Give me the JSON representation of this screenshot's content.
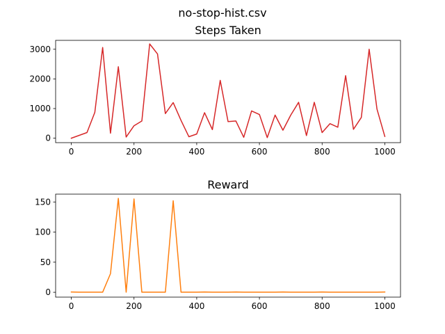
{
  "figure": {
    "suptitle": "no-stop-hist.csv"
  },
  "chart_data": [
    {
      "type": "line",
      "title": "Steps Taken",
      "xlabel": "",
      "ylabel": "",
      "xlim": [
        -50,
        1050
      ],
      "ylim": [
        -150,
        3300
      ],
      "xticks": [
        0,
        200,
        400,
        600,
        800,
        1000
      ],
      "yticks": [
        0,
        1000,
        2000,
        3000
      ],
      "grid": false,
      "series": [
        {
          "color": "#d62728",
          "x": [
            0,
            50,
            75,
            100,
            125,
            150,
            175,
            200,
            225,
            250,
            275,
            300,
            325,
            350,
            375,
            400,
            425,
            450,
            475,
            500,
            525,
            550,
            575,
            600,
            625,
            650,
            675,
            700,
            725,
            750,
            775,
            800,
            825,
            850,
            875,
            900,
            925,
            950,
            975,
            1000
          ],
          "y": [
            0,
            190,
            870,
            3060,
            170,
            2410,
            40,
            420,
            580,
            3180,
            2840,
            830,
            1200,
            600,
            50,
            140,
            860,
            290,
            1950,
            560,
            580,
            30,
            920,
            800,
            20,
            780,
            270,
            780,
            1210,
            90,
            1210,
            190,
            490,
            370,
            2110,
            300,
            700,
            3000,
            980,
            60
          ]
        }
      ]
    },
    {
      "type": "line",
      "title": "Reward",
      "xlabel": "",
      "ylabel": "",
      "xlim": [
        -50,
        1050
      ],
      "ylim": [
        -8,
        163
      ],
      "xticks": [
        0,
        200,
        400,
        600,
        800,
        1000
      ],
      "yticks": [
        0,
        50,
        100,
        150
      ],
      "grid": false,
      "series": [
        {
          "color": "#ff7f0e",
          "x": [
            0,
            25,
            50,
            75,
            100,
            125,
            150,
            175,
            200,
            225,
            250,
            275,
            300,
            325,
            350,
            375,
            400,
            425,
            450,
            475,
            500,
            525,
            550,
            575,
            600,
            625,
            650,
            675,
            700,
            725,
            750,
            775,
            800,
            825,
            850,
            875,
            900,
            925,
            950,
            975,
            1000
          ],
          "y": [
            0.5,
            0.2,
            0.2,
            0.2,
            0.2,
            31,
            156,
            0.2,
            155,
            0.2,
            0.2,
            0.2,
            0.2,
            152,
            0.2,
            0.3,
            0.3,
            0.5,
            0.3,
            0.2,
            0.3,
            0.5,
            0.2,
            0.2,
            0.2,
            0.3,
            0.2,
            0.5,
            0.3,
            0.2,
            0.2,
            0.3,
            0.5,
            0.2,
            0.2,
            0.2,
            0.2,
            0.2,
            0.2,
            0.2,
            0.5
          ]
        }
      ]
    }
  ]
}
